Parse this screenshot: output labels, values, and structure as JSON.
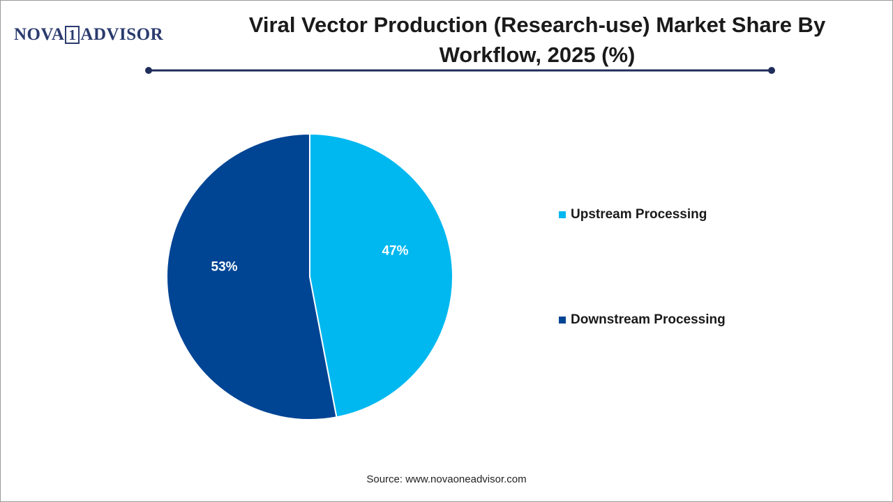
{
  "logo": {
    "left": "NOVA",
    "mark": "1",
    "right": "ADVISOR"
  },
  "chart_data": {
    "type": "pie",
    "title": "Viral Vector Production (Research-use) Market Share By Workflow, 2025 (%)",
    "categories": [
      "Upstream Processing",
      "Downstream Processing"
    ],
    "values": [
      47,
      53
    ],
    "value_labels": [
      "47%",
      "53%"
    ],
    "colors": [
      "#00b8f0",
      "#004494"
    ],
    "source": "Source: www.novaoneadvisor.com"
  }
}
